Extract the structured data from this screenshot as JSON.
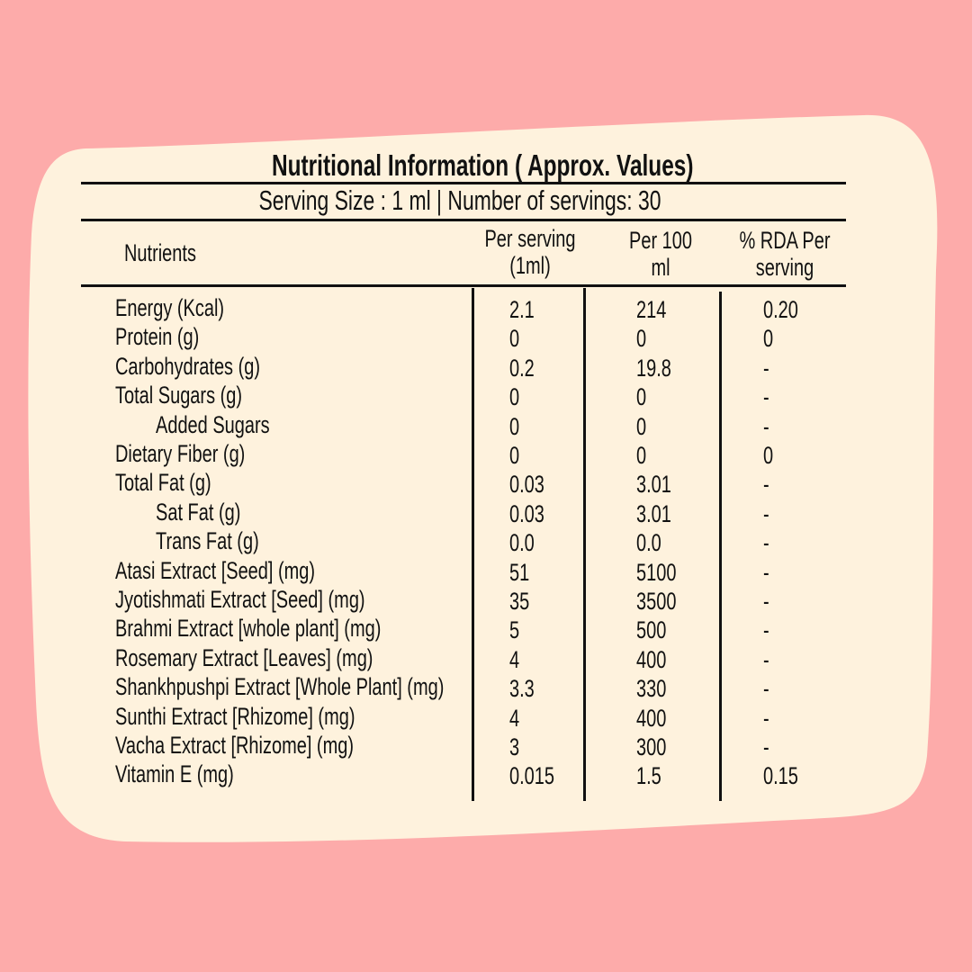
{
  "colors": {
    "background": "#fdabaa",
    "card": "#fef2dd",
    "text": "#111111"
  },
  "title": "Nutritional Information ( Approx. Values)",
  "serving_line": "Serving Size : 1 ml | Number of servings: 30",
  "headers": {
    "nutrients": "Nutrients",
    "per_serving": [
      "Per serving",
      "(1ml)"
    ],
    "per_100": [
      "Per 100",
      "ml"
    ],
    "rda": [
      "% RDA Per",
      "serving"
    ]
  },
  "rows": [
    {
      "name": "Energy (Kcal)",
      "indent": false,
      "per_serving": "2.1",
      "per_100": "214",
      "rda": "0.20"
    },
    {
      "name": "Protein (g)",
      "indent": false,
      "per_serving": "0",
      "per_100": "0",
      "rda": "0"
    },
    {
      "name": "Carbohydrates (g)",
      "indent": false,
      "per_serving": "0.2",
      "per_100": "19.8",
      "rda": "-"
    },
    {
      "name": "Total Sugars (g)",
      "indent": false,
      "per_serving": "0",
      "per_100": "0",
      "rda": "-"
    },
    {
      "name": "Added Sugars",
      "indent": true,
      "per_serving": "0",
      "per_100": "0",
      "rda": "-"
    },
    {
      "name": "Dietary Fiber (g)",
      "indent": false,
      "per_serving": "0",
      "per_100": "0",
      "rda": "0"
    },
    {
      "name": "Total Fat (g)",
      "indent": false,
      "per_serving": "0.03",
      "per_100": "3.01",
      "rda": "-"
    },
    {
      "name": "Sat Fat (g)",
      "indent": true,
      "per_serving": "0.03",
      "per_100": "3.01",
      "rda": "-"
    },
    {
      "name": "Trans Fat (g)",
      "indent": true,
      "per_serving": "0.0",
      "per_100": "0.0",
      "rda": "-"
    },
    {
      "name": "Atasi Extract [Seed] (mg)",
      "indent": false,
      "per_serving": "51",
      "per_100": "5100",
      "rda": "-"
    },
    {
      "name": "Jyotishmati Extract [Seed] (mg)",
      "indent": false,
      "per_serving": "35",
      "per_100": "3500",
      "rda": "-"
    },
    {
      "name": "Brahmi Extract [whole plant] (mg)",
      "indent": false,
      "per_serving": "5",
      "per_100": "500",
      "rda": "-"
    },
    {
      "name": "Rosemary Extract [Leaves] (mg)",
      "indent": false,
      "per_serving": "4",
      "per_100": "400",
      "rda": "-"
    },
    {
      "name": "Shankhpushpi Extract [Whole Plant] (mg)",
      "indent": false,
      "per_serving": "3.3",
      "per_100": "330",
      "rda": "-"
    },
    {
      "name": "Sunthi Extract [Rhizome] (mg)",
      "indent": false,
      "per_serving": "4",
      "per_100": "400",
      "rda": "-"
    },
    {
      "name": "Vacha Extract [Rhizome]  (mg)",
      "indent": false,
      "per_serving": "3",
      "per_100": "300",
      "rda": "-"
    },
    {
      "name": "Vitamin E (mg)",
      "indent": false,
      "per_serving": "0.015",
      "per_100": "1.5",
      "rda": "0.15"
    }
  ]
}
